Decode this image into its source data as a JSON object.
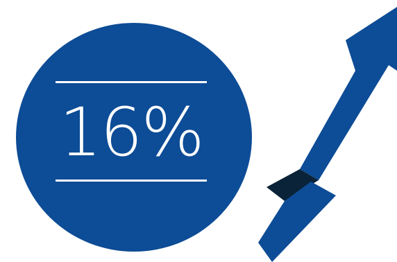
{
  "stat": {
    "value": "16%"
  },
  "colors": {
    "background": "#ffffff",
    "primary_blue": "#0d4c96",
    "fold_shadow": "#0b2338",
    "text": "#ffffff"
  },
  "icons": {
    "trend": "upward-arrow-icon"
  }
}
